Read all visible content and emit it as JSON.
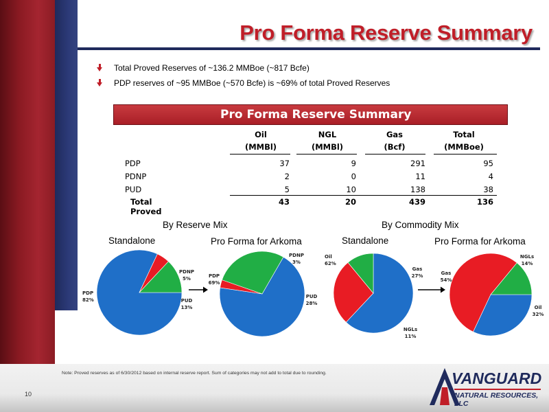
{
  "title": "Pro Forma Reserve Summary",
  "bullets": [
    "Total Proved Reserves of ~136.2 MMBoe (~817 Bcfe)",
    "PDP reserves of ~95 MMBoe (~570 Bcfe) is ~69% of total Proved Reserves"
  ],
  "table": {
    "banner": "Pro Forma Reserve Summary",
    "columns": [
      {
        "line1": "Oil",
        "line2": "(MMBl)"
      },
      {
        "line1": "NGL",
        "line2": "(MMBl)"
      },
      {
        "line1": "Gas",
        "line2": "(Bcf)"
      },
      {
        "line1": "Total",
        "line2": "(MMBoe)"
      }
    ],
    "rows": [
      {
        "label": "PDP",
        "values": [
          "37",
          "9",
          "291",
          "95"
        ]
      },
      {
        "label": "PDNP",
        "values": [
          "2",
          "0",
          "11",
          "4"
        ]
      },
      {
        "label": "PUD",
        "values": [
          "5",
          "10",
          "138",
          "38"
        ]
      }
    ],
    "total": {
      "label": "Total Proved",
      "values": [
        "43",
        "20",
        "439",
        "136"
      ]
    }
  },
  "sections": {
    "reserve_mix": "By Reserve Mix",
    "commodity_mix": "By Commodity Mix",
    "standalone": "Standalone",
    "pro_forma": "Pro Forma for Arkoma"
  },
  "chart_data": [
    {
      "type": "pie",
      "group": "By Reserve Mix",
      "subtitle": "Standalone",
      "slices": [
        {
          "label": "PDP",
          "value": 82,
          "pct": "82%",
          "color": "#1f6fc8"
        },
        {
          "label": "PDNP",
          "value": 5,
          "pct": "5%",
          "color": "#e81c24"
        },
        {
          "label": "PUD",
          "value": 13,
          "pct": "13%",
          "color": "#21ae45"
        }
      ]
    },
    {
      "type": "pie",
      "group": "By Reserve Mix",
      "subtitle": "Pro Forma for Arkoma",
      "slices": [
        {
          "label": "PDP",
          "value": 69,
          "pct": "69%",
          "color": "#1f6fc8"
        },
        {
          "label": "PDNP",
          "value": 3,
          "pct": "3%",
          "color": "#e81c24"
        },
        {
          "label": "PUD",
          "value": 28,
          "pct": "28%",
          "color": "#21ae45"
        }
      ]
    },
    {
      "type": "pie",
      "group": "By Commodity Mix",
      "subtitle": "Standalone",
      "slices": [
        {
          "label": "Oil",
          "value": 62,
          "pct": "62%",
          "color": "#1f6fc8"
        },
        {
          "label": "Gas",
          "value": 27,
          "pct": "27%",
          "color": "#e81c24"
        },
        {
          "label": "NGLs",
          "value": 11,
          "pct": "11%",
          "color": "#21ae45"
        }
      ]
    },
    {
      "type": "pie",
      "group": "By Commodity Mix",
      "subtitle": "Pro Forma for Arkoma",
      "slices": [
        {
          "label": "Oil",
          "value": 32,
          "pct": "32%",
          "color": "#1f6fc8"
        },
        {
          "label": "Gas",
          "value": 54,
          "pct": "54%",
          "color": "#e81c24"
        },
        {
          "label": "NGLs",
          "value": 14,
          "pct": "14%",
          "color": "#21ae45"
        }
      ]
    }
  ],
  "note": "Note: Proved reserves as of 6/30/2012 based on internal reserve report.  Sum of categories may not add to total due to rounding.",
  "page_number": "10",
  "logo": {
    "line1": "VANGUARD",
    "line2": "NATURAL RESOURCES, LLC"
  }
}
